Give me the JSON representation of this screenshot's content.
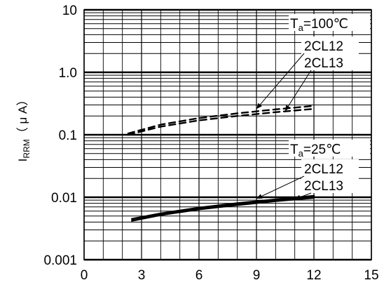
{
  "chart_data": {
    "type": "line",
    "x_scale": "linear",
    "y_scale": "log",
    "xlim": [
      0,
      15
    ],
    "ylim": [
      0.001,
      10
    ],
    "x_ticks": [
      {
        "value": 0,
        "label": "0"
      },
      {
        "value": 3,
        "label": "3"
      },
      {
        "value": 6,
        "label": "6"
      },
      {
        "value": 9,
        "label": "9"
      },
      {
        "value": 12,
        "label": "12"
      },
      {
        "value": 15,
        "label": "15"
      }
    ],
    "y_ticks": [
      {
        "value": 0.001,
        "label": "0.001"
      },
      {
        "value": 0.01,
        "label": "0.01"
      },
      {
        "value": 0.1,
        "label": "0.1"
      },
      {
        "value": 1,
        "label": "1.0"
      },
      {
        "value": 10,
        "label": "10"
      }
    ],
    "ylabel_main": "I",
    "ylabel_sub": "RRM",
    "ylabel_unit": "（ μ A）",
    "grid": true,
    "series": [
      {
        "name": "2CL12",
        "group": "Ta=100℃",
        "style": "dashed",
        "x": [
          2.3,
          4,
          6,
          8,
          10,
          12
        ],
        "y": [
          0.105,
          0.145,
          0.185,
          0.22,
          0.255,
          0.29
        ]
      },
      {
        "name": "2CL13",
        "group": "Ta=100℃",
        "style": "dashed",
        "x": [
          2.3,
          4,
          6,
          8,
          10,
          12
        ],
        "y": [
          0.1,
          0.135,
          0.17,
          0.2,
          0.23,
          0.26
        ]
      },
      {
        "name": "2CL12",
        "group": "Ta=25℃",
        "style": "solid",
        "x": [
          2.5,
          4,
          6,
          8,
          10,
          12
        ],
        "y": [
          0.0045,
          0.0055,
          0.0068,
          0.008,
          0.0092,
          0.0105
        ]
      },
      {
        "name": "2CL13",
        "group": "Ta=25℃",
        "style": "solid",
        "x": [
          2.5,
          4,
          6,
          8,
          10,
          12
        ],
        "y": [
          0.0042,
          0.0052,
          0.0064,
          0.0075,
          0.0087,
          0.0098
        ]
      }
    ],
    "annotations": [
      {
        "group": "Ta=100℃",
        "title_main": "T",
        "title_sub": "a",
        "title_rest": "=100℃",
        "labels": [
          "2CL12",
          "2CL13"
        ],
        "targets": [
          {
            "x": 9.0,
            "y": 0.26
          },
          {
            "x": 10.5,
            "y": 0.24
          }
        ]
      },
      {
        "group": "Ta=25℃",
        "title_main": "T",
        "title_sub": "a",
        "title_rest": "=25℃",
        "labels": [
          "2CL12",
          "2CL13"
        ],
        "targets": [
          {
            "x": 9.0,
            "y": 0.0095
          },
          {
            "x": 11.0,
            "y": 0.0093
          }
        ]
      }
    ]
  }
}
